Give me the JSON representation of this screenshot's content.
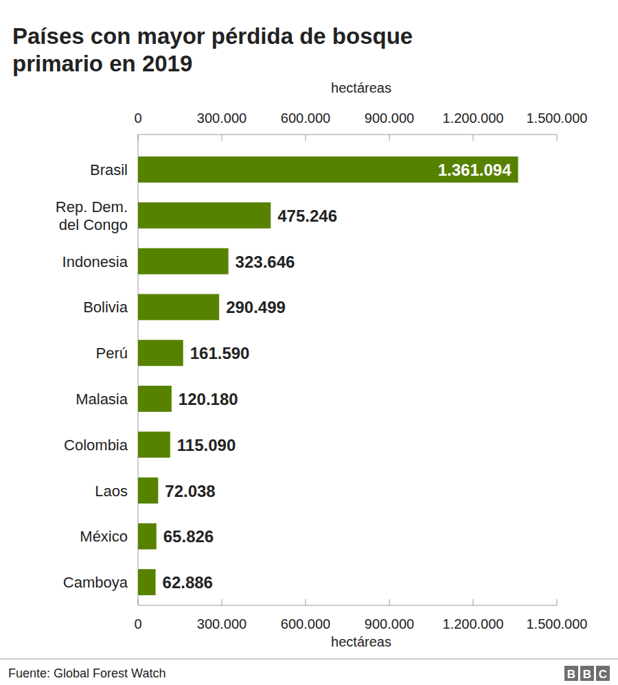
{
  "chart_data": {
    "type": "bar",
    "orientation": "horizontal",
    "title": "Países con mayor pérdida de bosque primario en 2019",
    "xlabel": "hectáreas",
    "categories": [
      "Brasil",
      "Rep. Dem.\ndel Congo",
      "Indonesia",
      "Bolivia",
      "Perú",
      "Malasia",
      "Colombia",
      "Laos",
      "México",
      "Camboya"
    ],
    "values": [
      1361094,
      475246,
      323646,
      290499,
      161590,
      120180,
      115090,
      72038,
      65826,
      62886
    ],
    "value_labels": [
      "1.361.094",
      "475.246",
      "323.646",
      "290.499",
      "161.590",
      "120.180",
      "115.090",
      "72.038",
      "65.826",
      "62.886"
    ],
    "data_labels": true,
    "color": "#578200",
    "xlim": [
      0,
      1500000
    ],
    "xticks": [
      0,
      {
        "value": 300000,
        "label": "300.000"
      },
      {
        "value": 600000,
        "label": "600.000"
      },
      {
        "value": 900000,
        "label": "900.000"
      },
      {
        "value": 1200000,
        "label": "1.200.000"
      },
      {
        "value": 1500000,
        "label": "1.500.000"
      }
    ],
    "grid": false,
    "source": "Fuente: Global Forest Watch",
    "branding": "BBC"
  }
}
